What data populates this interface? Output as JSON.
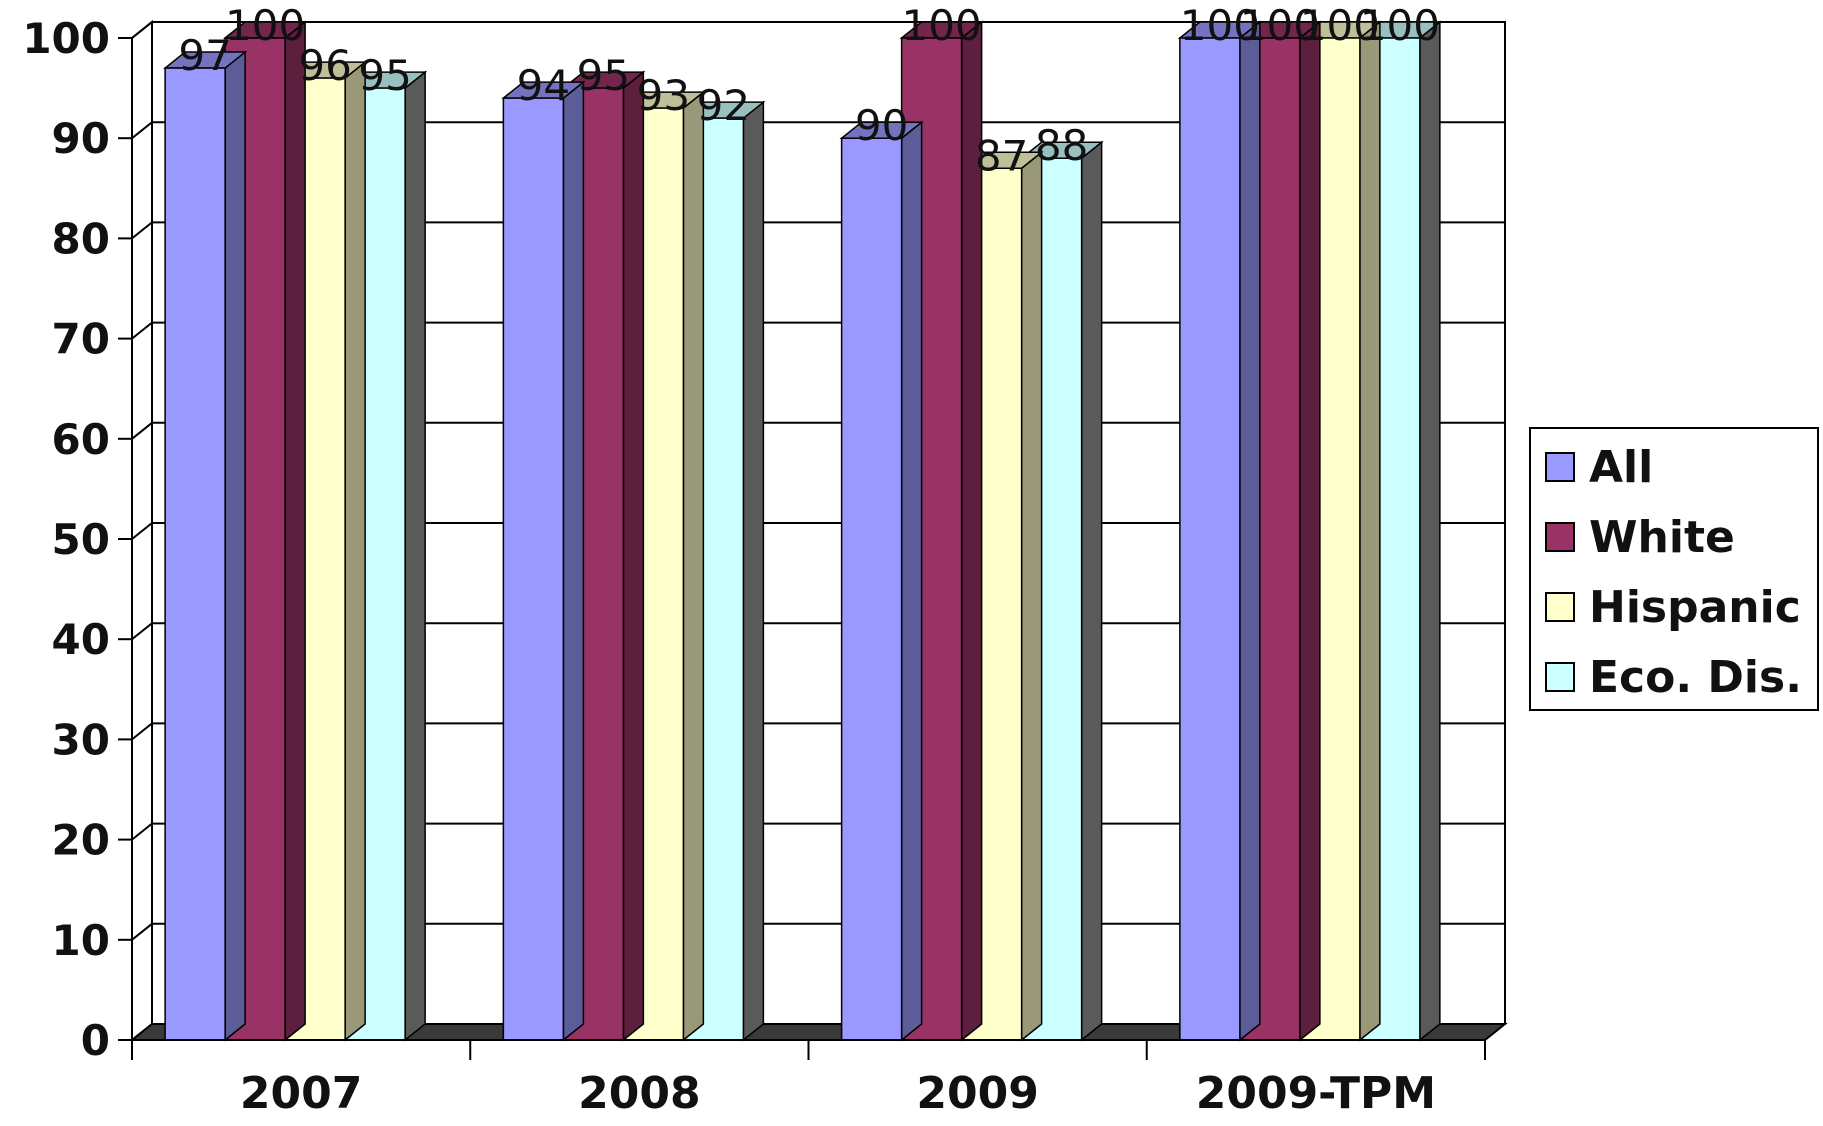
{
  "chart_data": {
    "type": "bar",
    "categories": [
      "2007",
      "2008",
      "2009",
      "2009-TPM"
    ],
    "series": [
      {
        "name": "All",
        "values": [
          97,
          94,
          90,
          100
        ],
        "color": "#9999ff"
      },
      {
        "name": "White",
        "values": [
          100,
          95,
          100,
          100
        ],
        "color": "#993366"
      },
      {
        "name": "Hispanic",
        "values": [
          96,
          93,
          87,
          100
        ],
        "color": "#ffffcc"
      },
      {
        "name": "Eco. Dis.",
        "values": [
          95,
          92,
          88,
          100
        ],
        "color": "#ccffff"
      }
    ],
    "yticks": [
      "0",
      "10",
      "20",
      "30",
      "40",
      "50",
      "60",
      "70",
      "80",
      "90",
      "100"
    ],
    "ylim": [
      0,
      100
    ],
    "grid": true,
    "style": "3d-clustered",
    "legend_position": "right"
  }
}
